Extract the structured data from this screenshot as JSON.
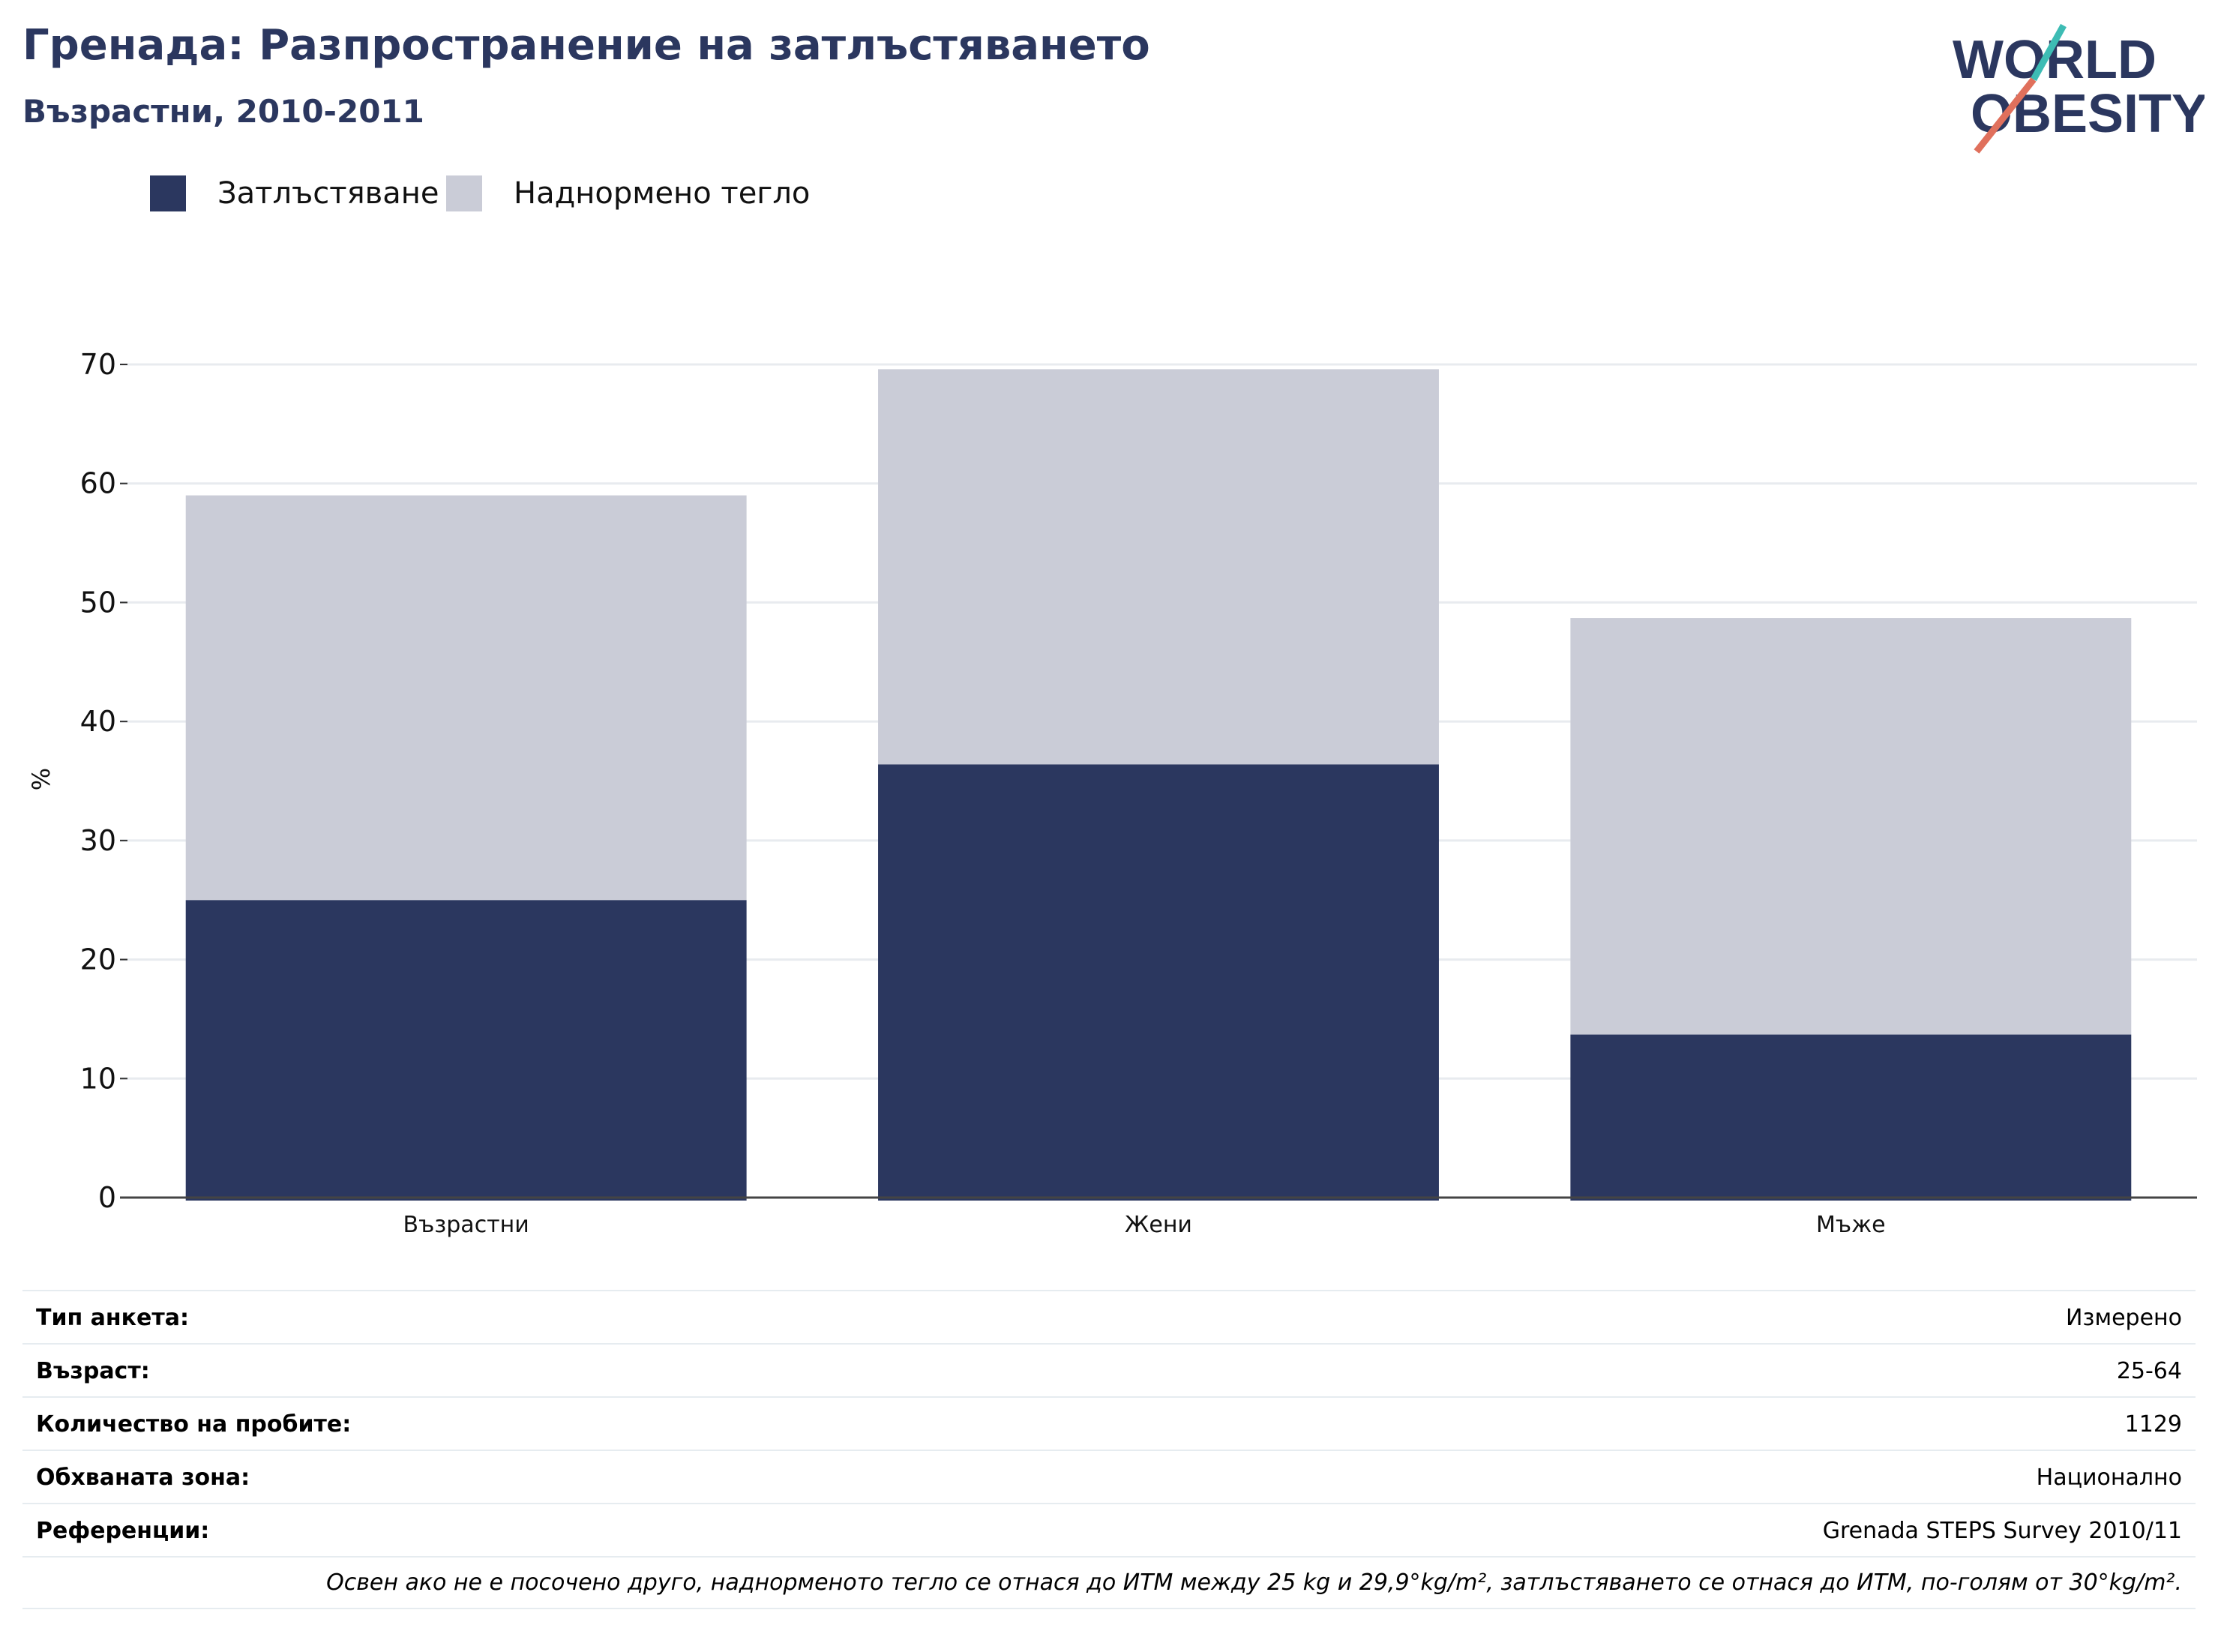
{
  "header": {
    "title": "Гренада: Разпространение на затлъстяването",
    "subtitle": "Възрастни, 2010-2011"
  },
  "logo": {
    "line1": "WORLD",
    "line2": "OBESITY"
  },
  "colors": {
    "obesity": "#2b375f",
    "overweight": "#caccd7",
    "accent_teal": "#3dbcb4",
    "accent_red": "#e0705c"
  },
  "legend": {
    "items": [
      {
        "label": "Затлъстяване",
        "color": "#2b375f"
      },
      {
        "label": "Наднормено тегло",
        "color": "#caccd7"
      }
    ]
  },
  "chart_data": {
    "type": "bar",
    "stacked": true,
    "categories": [
      "Възрастни",
      "Жени",
      "Мъже"
    ],
    "series": [
      {
        "name": "Затлъстяване",
        "values": [
          25.0,
          36.4,
          13.7
        ]
      },
      {
        "name": "Наднормено тегло",
        "values": [
          34.0,
          33.2,
          35.0
        ]
      }
    ],
    "totals": [
      59.0,
      69.6,
      48.7
    ],
    "ylabel": "%",
    "ylim": [
      0,
      70
    ],
    "yticks": [
      0,
      10,
      20,
      30,
      40,
      50,
      60,
      70
    ],
    "grid": true
  },
  "info": {
    "rows": [
      {
        "key": "Тип анкета:",
        "value": "Измерено"
      },
      {
        "key": "Възраст:",
        "value": "25-64"
      },
      {
        "key": "Количество на пробите:",
        "value": "1129"
      },
      {
        "key": "Обхваната зона:",
        "value": "Национално"
      },
      {
        "key": "Референции:",
        "value": "Grenada STEPS Survey 2010/11"
      }
    ],
    "note": "Освен ако не е посочено друго, наднорменото тегло се отнася до ИТМ между 25 kg и 29,9°kg/m², затлъстяването се отнася до ИТМ, по-голям от 30°kg/m²."
  }
}
